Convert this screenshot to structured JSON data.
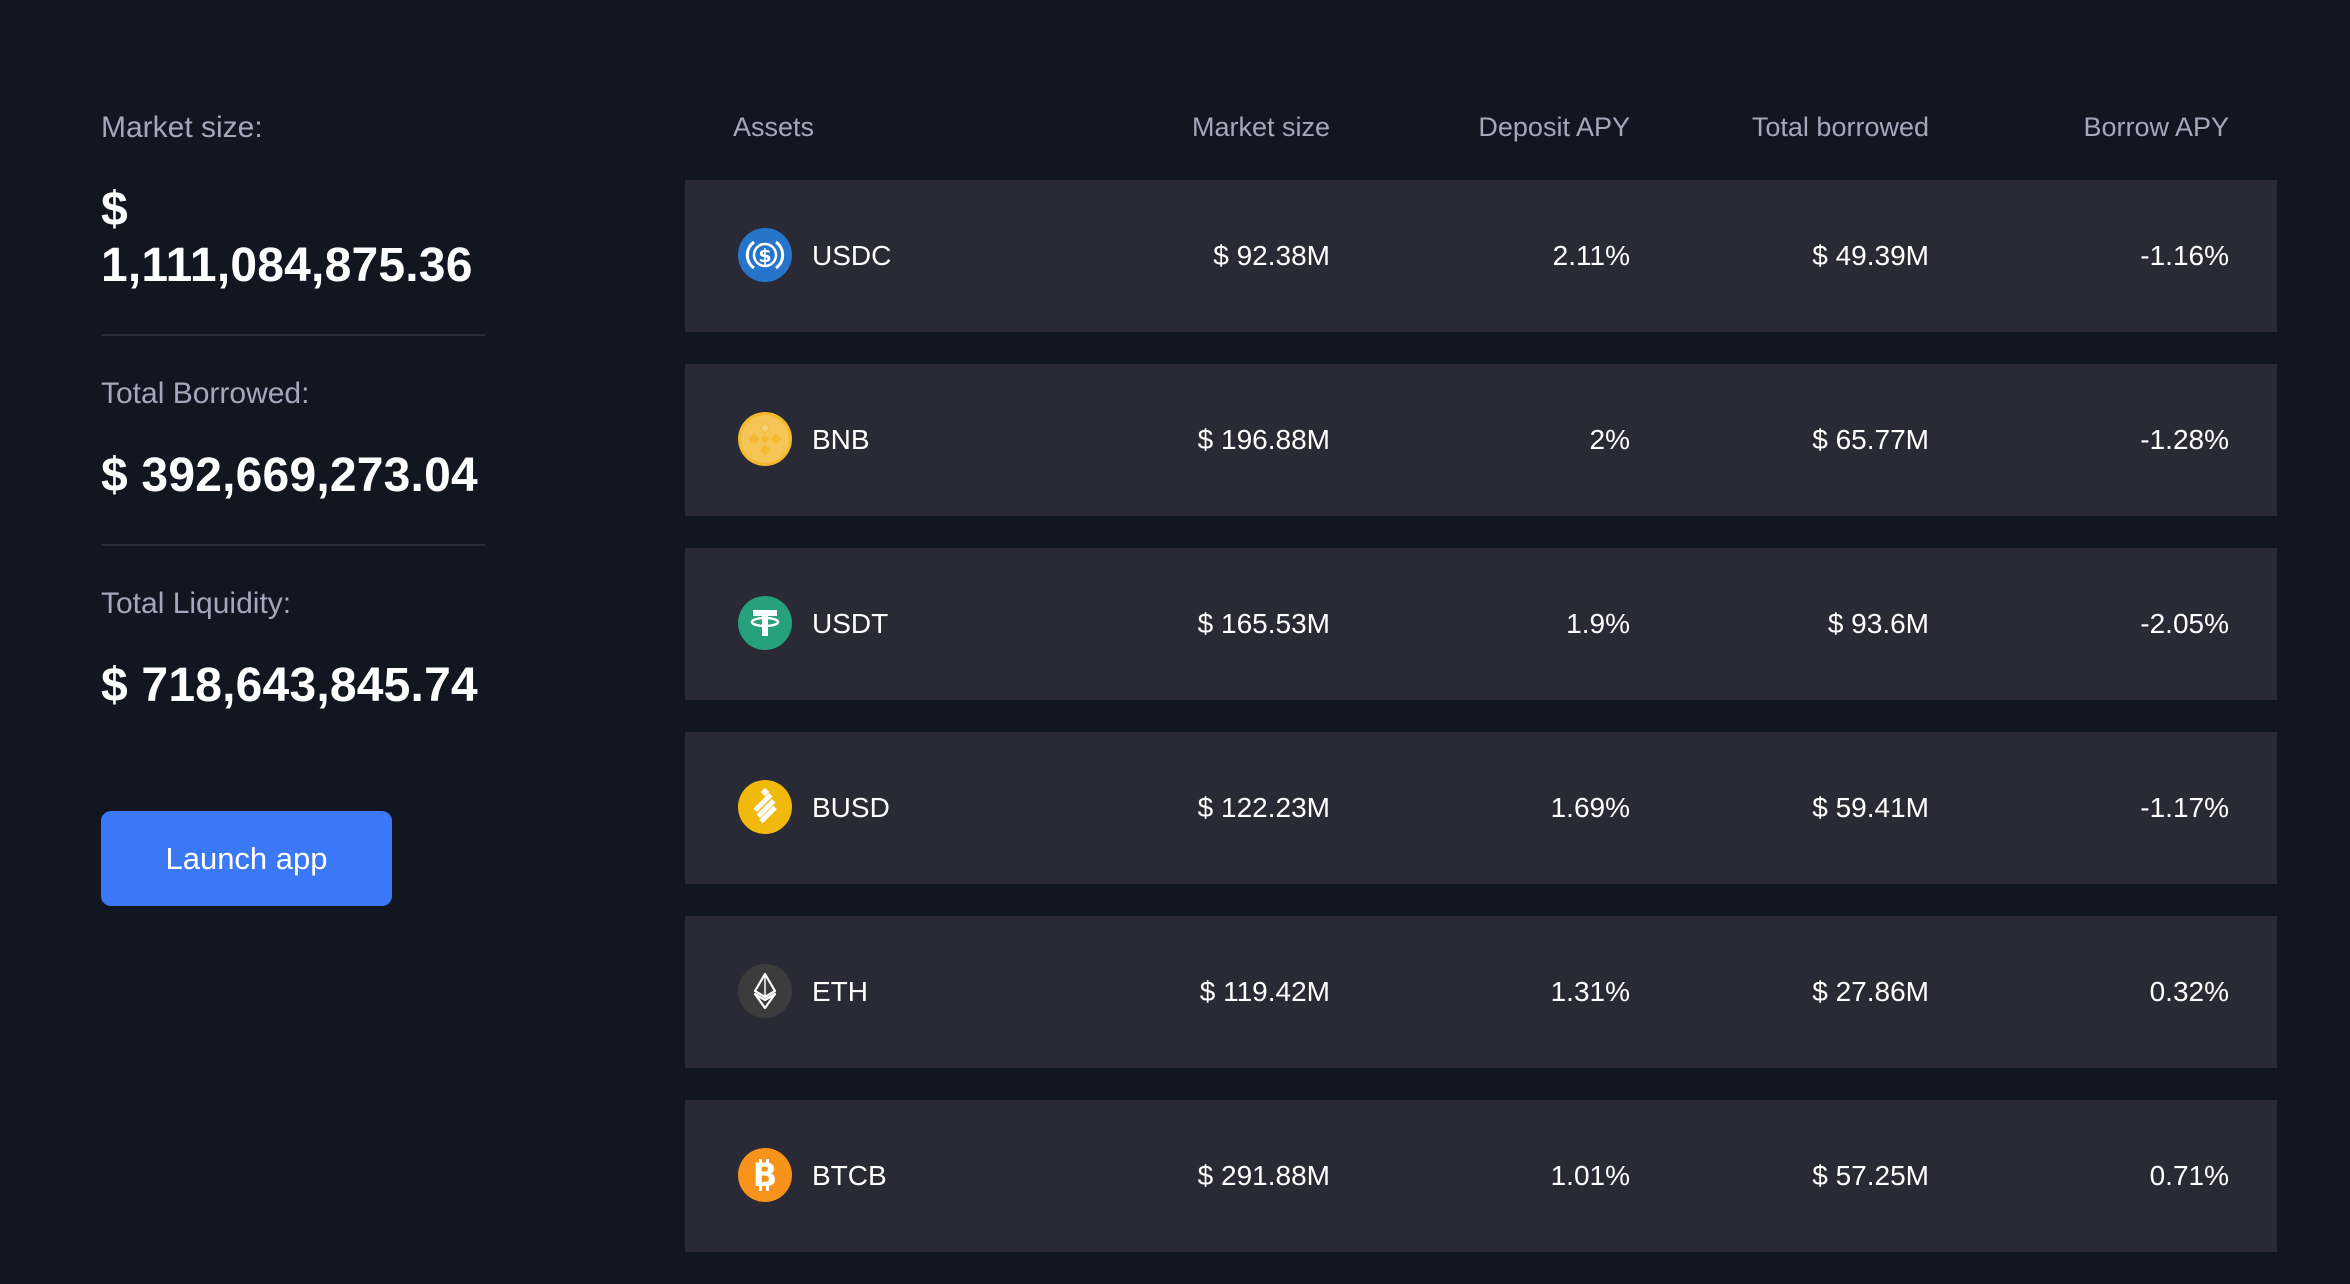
{
  "stats": [
    {
      "label": "Market size:",
      "value": "$ 1,111,084,875.36"
    },
    {
      "label": "Total Borrowed:",
      "value": "$ 392,669,273.04"
    },
    {
      "label": "Total Liquidity:",
      "value": "$ 718,643,845.74"
    }
  ],
  "launch_button": "Launch app",
  "table": {
    "headers": {
      "assets": "Assets",
      "market_size": "Market size",
      "deposit_apy": "Deposit APY",
      "total_borrowed": "Total borrowed",
      "borrow_apy": "Borrow APY"
    },
    "rows": [
      {
        "asset": "USDC",
        "icon": "usdc-icon",
        "market_size": "$ 92.38M",
        "deposit_apy": "2.11%",
        "total_borrowed": "$ 49.39M",
        "borrow_apy": "-1.16%"
      },
      {
        "asset": "BNB",
        "icon": "bnb-icon",
        "market_size": "$ 196.88M",
        "deposit_apy": "2%",
        "total_borrowed": "$ 65.77M",
        "borrow_apy": "-1.28%"
      },
      {
        "asset": "USDT",
        "icon": "usdt-icon",
        "market_size": "$ 165.53M",
        "deposit_apy": "1.9%",
        "total_borrowed": "$ 93.6M",
        "borrow_apy": "-2.05%"
      },
      {
        "asset": "BUSD",
        "icon": "busd-icon",
        "market_size": "$ 122.23M",
        "deposit_apy": "1.69%",
        "total_borrowed": "$ 59.41M",
        "borrow_apy": "-1.17%"
      },
      {
        "asset": "ETH",
        "icon": "eth-icon",
        "market_size": "$ 119.42M",
        "deposit_apy": "1.31%",
        "total_borrowed": "$ 27.86M",
        "borrow_apy": "0.32%"
      },
      {
        "asset": "BTCB",
        "icon": "btcb-icon",
        "market_size": "$ 291.88M",
        "deposit_apy": "1.01%",
        "total_borrowed": "$ 57.25M",
        "borrow_apy": "0.71%"
      }
    ]
  },
  "colors": {
    "background": "#121620",
    "row_background": "#292a36",
    "accent": "#3b78f7",
    "muted_text": "#a3a9bc",
    "usdc": "#2775ca",
    "bnb": "#f0b90b",
    "usdt": "#26a17b",
    "busd": "#f0b90b",
    "eth": "#3c3c3d",
    "btcb": "#f7931a"
  }
}
